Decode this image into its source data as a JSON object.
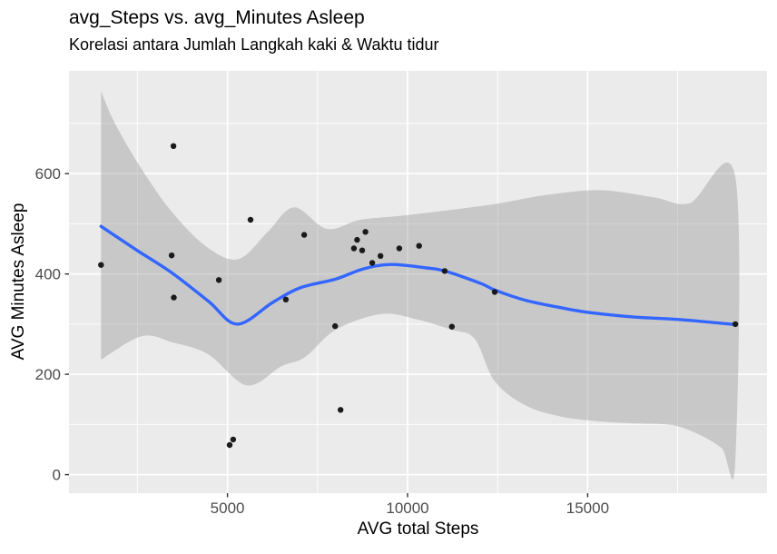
{
  "header": {
    "title": "avg_Steps vs. avg_Minutes Asleep",
    "subtitle": "Korelasi antara Jumlah Langkah kaki & Waktu tidur"
  },
  "chart_data": {
    "type": "scatter",
    "title": "avg_Steps vs. avg_Minutes Asleep",
    "subtitle": "Korelasi antara Jumlah Langkah kaki & Waktu tidur",
    "xlabel": "AVG total Steps",
    "ylabel": "AVG Minutes Asleep",
    "xlim": [
      600,
      19980
    ],
    "ylim": [
      -37,
      805
    ],
    "x_major_ticks": [
      5000,
      10000,
      15000
    ],
    "x_minor_gridlines": [
      2500,
      7500,
      12500,
      17500
    ],
    "y_major_ticks": [
      0,
      200,
      400,
      600
    ],
    "y_minor_gridlines": [
      100,
      300,
      500,
      700
    ],
    "grid": true,
    "legend_position": "none",
    "points": [
      [
        1490,
        418
      ],
      [
        3450,
        437
      ],
      [
        3500,
        655
      ],
      [
        3510,
        353
      ],
      [
        4760,
        388
      ],
      [
        5060,
        59
      ],
      [
        5160,
        70
      ],
      [
        5640,
        508
      ],
      [
        6620,
        349
      ],
      [
        7130,
        478
      ],
      [
        7990,
        296
      ],
      [
        8140,
        129
      ],
      [
        8510,
        451
      ],
      [
        8600,
        468
      ],
      [
        8740,
        447
      ],
      [
        8830,
        484
      ],
      [
        9020,
        422
      ],
      [
        9250,
        436
      ],
      [
        9770,
        451
      ],
      [
        10320,
        456
      ],
      [
        11030,
        406
      ],
      [
        11230,
        295
      ],
      [
        12420,
        364
      ],
      [
        19100,
        300
      ]
    ],
    "smooth_line": [
      [
        1490,
        495
      ],
      [
        2470,
        448
      ],
      [
        3480,
        401
      ],
      [
        4480,
        345
      ],
      [
        5270,
        300
      ],
      [
        6250,
        343
      ],
      [
        7000,
        372
      ],
      [
        8010,
        390
      ],
      [
        8770,
        410
      ],
      [
        9520,
        419
      ],
      [
        10530,
        412
      ],
      [
        11030,
        406
      ],
      [
        12040,
        381
      ],
      [
        12420,
        368
      ],
      [
        13300,
        347
      ],
      [
        14310,
        332
      ],
      [
        15060,
        323
      ],
      [
        16320,
        314
      ],
      [
        17580,
        309
      ],
      [
        19100,
        299
      ]
    ],
    "ribbon_upper": [
      [
        1490,
        765
      ],
      [
        1870,
        701
      ],
      [
        2600,
        611
      ],
      [
        3500,
        520
      ],
      [
        4480,
        451
      ],
      [
        5320,
        430
      ],
      [
        6120,
        484
      ],
      [
        6850,
        533
      ],
      [
        7760,
        490
      ],
      [
        8690,
        508
      ],
      [
        9950,
        517
      ],
      [
        12290,
        538
      ],
      [
        13800,
        557
      ],
      [
        15320,
        567
      ],
      [
        16830,
        553
      ],
      [
        17830,
        541
      ],
      [
        19100,
        593
      ]
    ],
    "ribbon_lower": [
      [
        1490,
        229
      ],
      [
        2620,
        276
      ],
      [
        3500,
        263
      ],
      [
        4460,
        240
      ],
      [
        5540,
        178
      ],
      [
        6500,
        216
      ],
      [
        7150,
        234
      ],
      [
        8010,
        289
      ],
      [
        9270,
        320
      ],
      [
        10280,
        309
      ],
      [
        11210,
        289
      ],
      [
        11860,
        271
      ],
      [
        12420,
        186
      ],
      [
        13300,
        137
      ],
      [
        14310,
        115
      ],
      [
        15320,
        106
      ],
      [
        16320,
        102
      ],
      [
        17330,
        99
      ],
      [
        18090,
        80
      ],
      [
        18720,
        53
      ],
      [
        19100,
        26
      ]
    ],
    "colors": {
      "panel_bg": "#EBEBEB",
      "grid": "#FFFFFF",
      "point": "#1A1A1A",
      "smooth": "#3366FF",
      "ribbon": "#999999",
      "ribbon_opacity": 0.42,
      "tick_text": "#4D4D4D",
      "tick_mark": "#333333"
    }
  }
}
